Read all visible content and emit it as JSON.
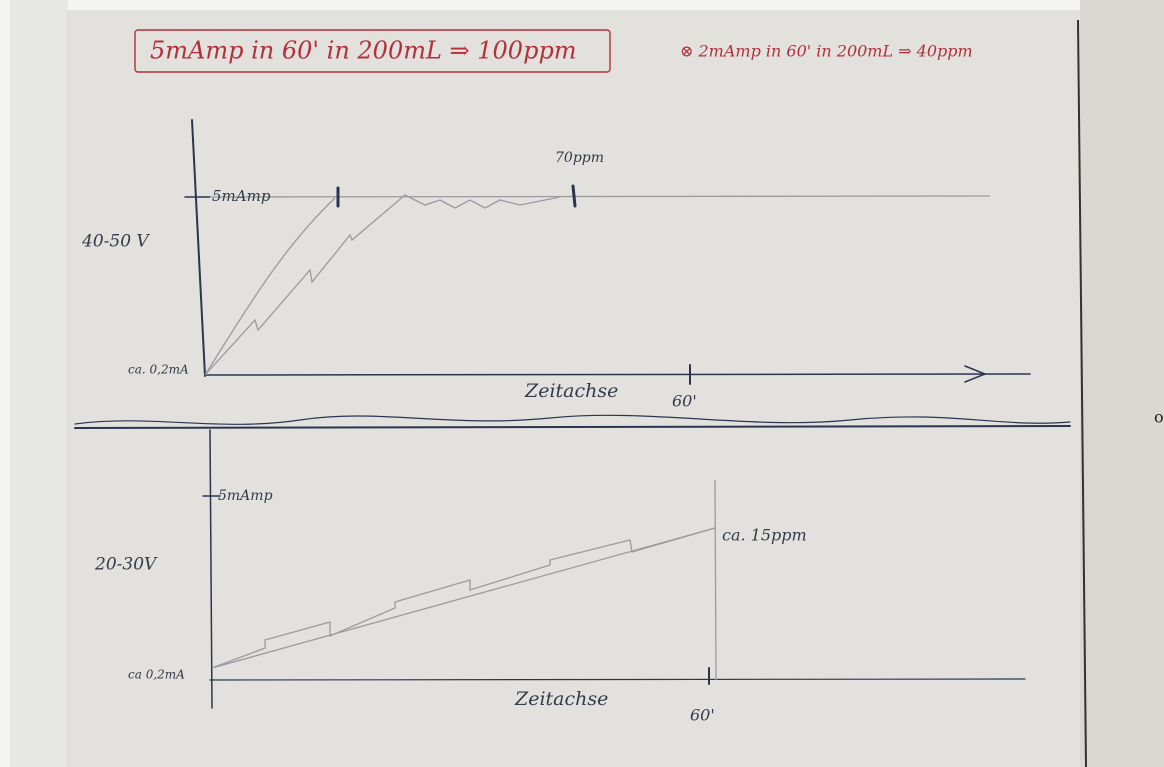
{
  "header": {
    "note_main": "5mAmp in 60' in 200mL ⇒ 100ppm",
    "note_alt": "⊗ 2mAmp in 60' in 200mL ⇒ 40ppm"
  },
  "top_sketch": {
    "current_label": "5mAmp",
    "concentration_label": "70ppm",
    "voltage_label": "40-50 V",
    "baseline_label": "ca. 0,2mA",
    "x_axis_label": "Zeitachse",
    "time_label": "60'"
  },
  "bottom_sketch": {
    "current_label": "5mAmp",
    "voltage_label": "20-30V",
    "concentration_label": "ca. 15ppm",
    "baseline_label": "ca 0,2mA",
    "x_axis_label": "Zeitachse",
    "time_label": "60'"
  },
  "margin_mark": "o"
}
